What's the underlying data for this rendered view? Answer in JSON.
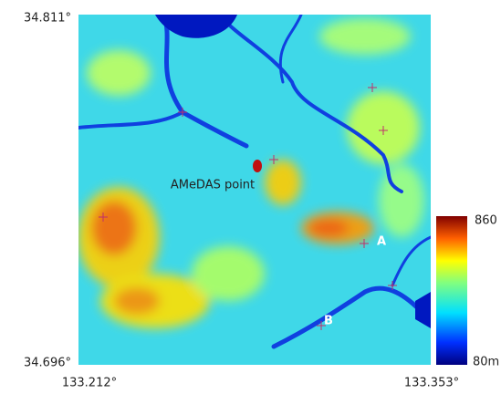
{
  "map": {
    "corners": {
      "lat_top": "34.811°",
      "lat_bottom": "34.696°",
      "lon_left": "133.212°",
      "lon_right": "133.353°"
    },
    "labels": {
      "station": "AMeDAS point",
      "point_a": "A",
      "point_b": "B"
    },
    "legend": {
      "max": "860",
      "min": "80m"
    }
  }
}
